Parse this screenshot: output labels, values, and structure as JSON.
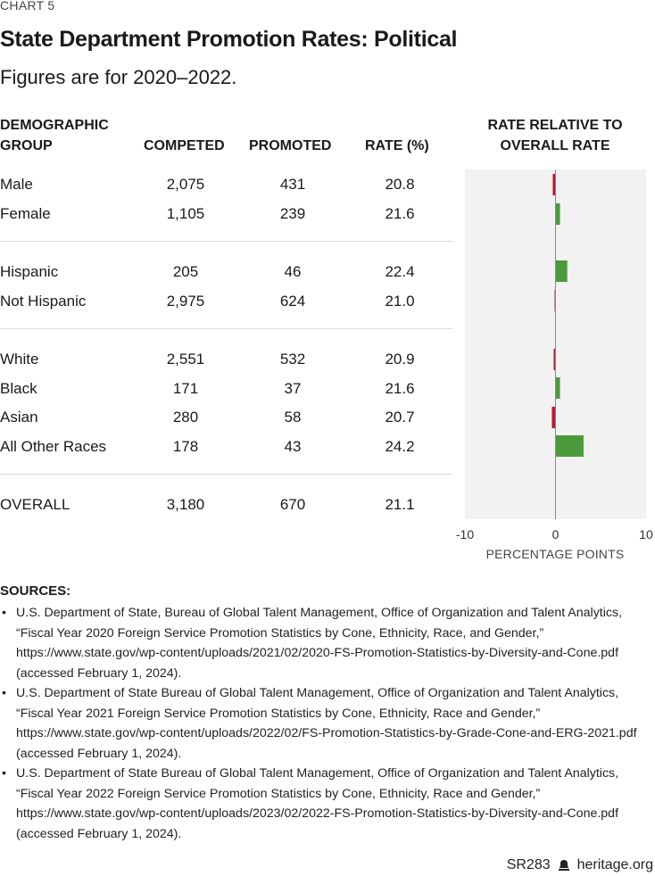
{
  "header": {
    "chart_label": "CHART 5",
    "title": "State Department Promotion Rates: Political",
    "subtitle": "Figures are for 2020–2022."
  },
  "columns": {
    "group_line1": "DEMOGRAPHIC",
    "group_line2": "GROUP",
    "competed": "COMPETED",
    "promoted": "PROMOTED",
    "rate": "RATE (%)",
    "relative_line1": "RATE RELATIVE TO",
    "relative_line2": "OVERALL RATE"
  },
  "rows": [
    {
      "group": "Male",
      "competed": "2,075",
      "promoted": "431",
      "rate": "20.8"
    },
    {
      "group": "Female",
      "competed": "1,105",
      "promoted": "239",
      "rate": "21.6"
    },
    {
      "group": "Hispanic",
      "competed": "205",
      "promoted": "46",
      "rate": "22.4"
    },
    {
      "group": "Not Hispanic",
      "competed": "2,975",
      "promoted": "624",
      "rate": "21.0"
    },
    {
      "group": "White",
      "competed": "2,551",
      "promoted": "532",
      "rate": "20.9"
    },
    {
      "group": "Black",
      "competed": "171",
      "promoted": "37",
      "rate": "21.6"
    },
    {
      "group": "Asian",
      "competed": "280",
      "promoted": "58",
      "rate": "20.7"
    },
    {
      "group": "All Other Races",
      "competed": "178",
      "promoted": "43",
      "rate": "24.2"
    },
    {
      "group": "OVERALL",
      "competed": "3,180",
      "promoted": "670",
      "rate": "21.1"
    }
  ],
  "chart_data": {
    "type": "bar",
    "orientation": "horizontal",
    "title": "RATE RELATIVE TO OVERALL RATE",
    "xlabel": "PERCENTAGE POINTS",
    "categories": [
      "Male",
      "Female",
      "Hispanic",
      "Not Hispanic",
      "White",
      "Black",
      "Asian",
      "All Other Races",
      "OVERALL"
    ],
    "values": [
      -0.3,
      0.5,
      1.3,
      -0.1,
      -0.2,
      0.5,
      -0.4,
      3.1,
      0
    ],
    "xlim": [
      -10,
      10
    ],
    "xticks": [
      "-10",
      "0",
      "10"
    ],
    "colors": {
      "positive": "#4a9a3c",
      "negative": "#c8102e",
      "panel": "#f2f2f2",
      "axis": "#888888"
    }
  },
  "sources": {
    "title": "SOURCES:",
    "items": [
      "U.S. Department of State, Bureau of Global Talent Management, Office of Organization and Talent Analytics, “Fiscal Year 2020 Foreign Service Promotion Statistics by Cone, Ethnicity, Race, and Gender,” https://www.state.gov/wp-content/uploads/2021/02/2020-FS-Promotion-Statistics-by-Diversity-and-Cone.pdf (accessed February 1, 2024).",
      "U.S. Department of State Bureau of Global Talent Management, Office of Organization and Talent Analytics, “Fiscal Year 2021 Foreign Service Promotion Statistics by Cone, Ethnicity, Race and Gender,” https://www.state.gov/wp-content/uploads/2022/02/FS-Promotion-Statistics-by-Grade-Cone-and-ERG-2021.pdf (accessed February 1, 2024).",
      "U.S. Department of State Bureau of Global Talent Management, Office of Organization and Talent Analytics, “Fiscal Year 2022 Foreign Service Promotion Statistics by Cone, Ethnicity, Race and Gender,” https://www.state.gov/wp-content/uploads/2023/02/2022-FS-Promotion-Statistics-by-Diversity-and-Cone.pdf (accessed February 1, 2024)."
    ]
  },
  "footer": {
    "report_id": "SR283",
    "site": "heritage.org",
    "icon": "bell-icon"
  }
}
